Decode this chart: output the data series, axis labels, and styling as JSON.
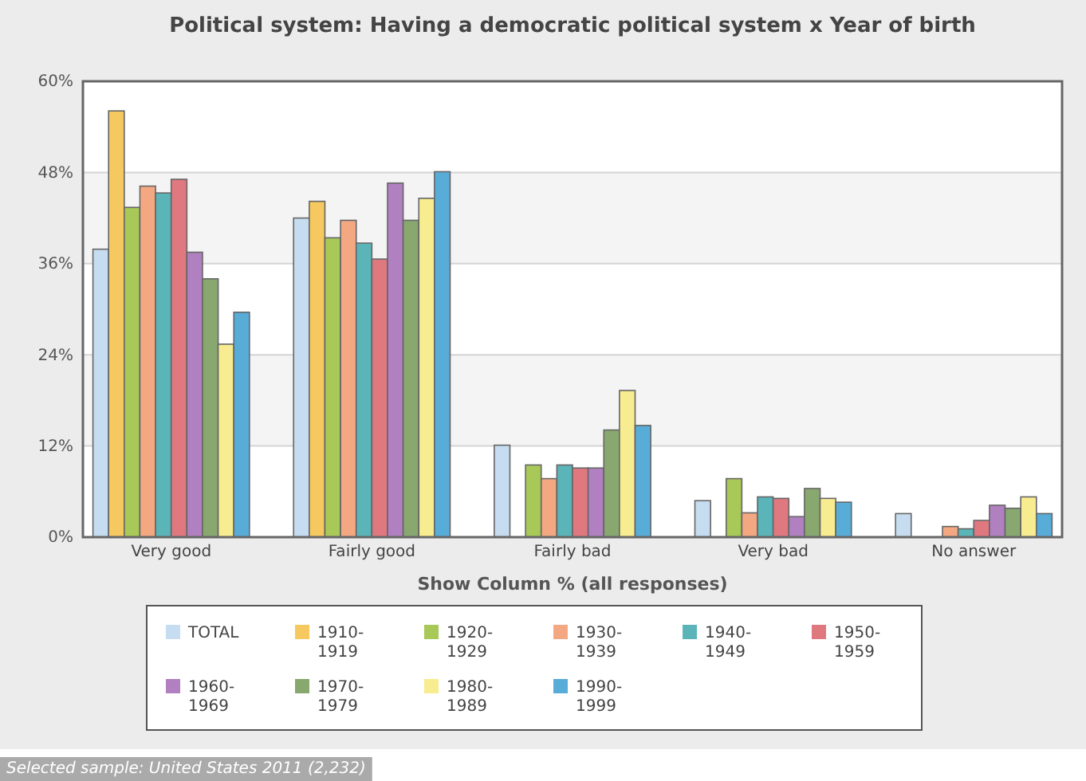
{
  "chart_data": {
    "type": "bar",
    "title": "Political system: Having a democratic political system x Year of birth",
    "xlabel": "Show Column % (all responses)",
    "categories": [
      "Very good",
      "Fairly good",
      "Fairly bad",
      "Very bad",
      "No answer"
    ],
    "series": [
      {
        "name": "TOTAL",
        "color": "#c6dcf0",
        "values": [
          37.9,
          42.0,
          12.1,
          4.8,
          3.1
        ]
      },
      {
        "name": "1910-1919",
        "color": "#f5c860",
        "values": [
          56.1,
          44.2,
          0,
          0,
          0
        ]
      },
      {
        "name": "1920-1929",
        "color": "#a8c858",
        "values": [
          43.4,
          39.4,
          9.5,
          7.7,
          0
        ]
      },
      {
        "name": "1930-1939",
        "color": "#f4a882",
        "values": [
          46.2,
          41.7,
          7.7,
          3.2,
          1.4
        ]
      },
      {
        "name": "1940-1949",
        "color": "#5ab4b8",
        "values": [
          45.3,
          38.7,
          9.5,
          5.3,
          1.1
        ]
      },
      {
        "name": "1950-1959",
        "color": "#e07880",
        "values": [
          47.1,
          36.6,
          9.1,
          5.1,
          2.2
        ]
      },
      {
        "name": "1960-1969",
        "color": "#b080c0",
        "values": [
          37.5,
          46.6,
          9.1,
          2.7,
          4.2
        ]
      },
      {
        "name": "1970-1979",
        "color": "#88a870",
        "values": [
          34.0,
          41.7,
          14.1,
          6.4,
          3.8
        ]
      },
      {
        "name": "1980-1989",
        "color": "#f8ec90",
        "values": [
          25.4,
          44.6,
          19.3,
          5.1,
          5.3
        ]
      },
      {
        "name": "1990-1999",
        "color": "#58acd8",
        "values": [
          29.6,
          48.1,
          14.7,
          4.6,
          3.1
        ]
      }
    ],
    "ylim": [
      0,
      60
    ],
    "yticks": [
      {
        "value": 0,
        "label": "0%"
      },
      {
        "value": 12,
        "label": "12%"
      },
      {
        "value": 24,
        "label": "24%"
      },
      {
        "value": 36,
        "label": "36%"
      },
      {
        "value": 48,
        "label": "48%"
      },
      {
        "value": 60,
        "label": "60%"
      }
    ],
    "grid": "y",
    "legend": "bottom",
    "annotations": [
      "Selected sample: United States 2011 (2,232)"
    ]
  }
}
